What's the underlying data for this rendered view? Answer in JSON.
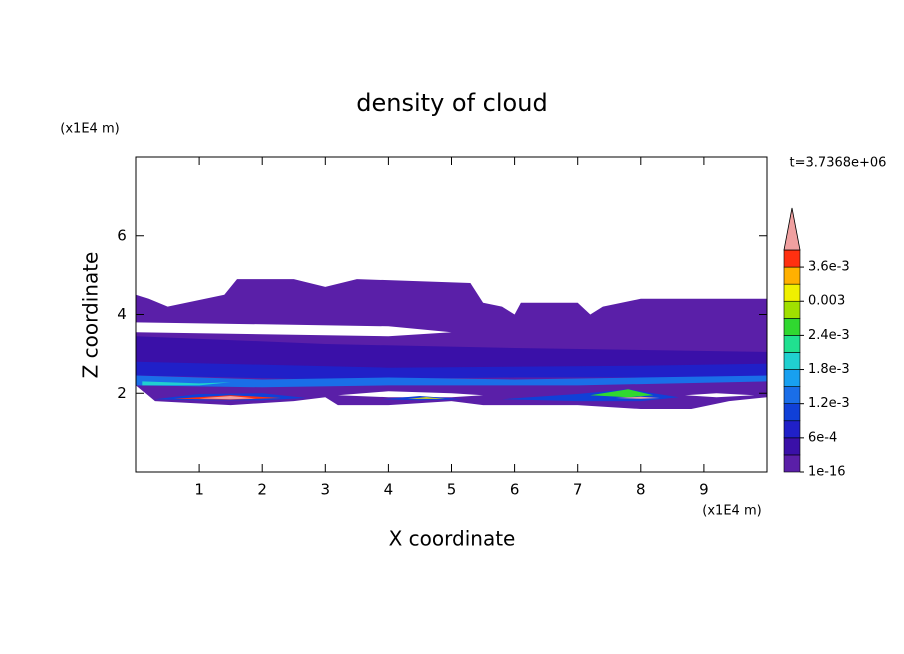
{
  "chart_data": {
    "type": "contour",
    "title": "density of cloud",
    "xlabel": "X coordinate",
    "ylabel": "Z coordinate",
    "x_unit": "(x1E4 m)",
    "y_unit": "(x1E4 m)",
    "annotation": "t=3.7368e+06",
    "xlim": [
      0,
      10
    ],
    "ylim": [
      0,
      8
    ],
    "xticks": [
      1,
      2,
      3,
      4,
      5,
      6,
      7,
      8,
      9
    ],
    "yticks": [
      2,
      4,
      6
    ],
    "grid": false,
    "colorbar": {
      "levels": [
        1e-16,
        0.0003,
        0.0006,
        0.0009,
        0.0012,
        0.0015,
        0.0018,
        0.0021,
        0.0024,
        0.0027,
        0.003,
        0.0033,
        0.0036,
        0.0039
      ],
      "colors": [
        "#5a1fa8",
        "#3a10a8",
        "#2020c8",
        "#1040d8",
        "#1a6ee8",
        "#18a0f0",
        "#20d0d0",
        "#20e090",
        "#30d830",
        "#a0e000",
        "#f0f000",
        "#ffb000",
        "#ff3010"
      ],
      "extend_color": "#f0a0a0",
      "ticks": [
        1e-16,
        {
          "value": 0.0006,
          "label": "6e-4"
        },
        {
          "value": 0.0012,
          "label": "1.2e-3"
        },
        {
          "value": 0.0018,
          "label": "1.8e-3"
        },
        {
          "value": 0.0024,
          "label": "2.4e-3"
        },
        0.003,
        {
          "value": 0.0036,
          "label": "3.6e-3"
        }
      ]
    },
    "regions": [
      {
        "level": 0,
        "rings": [
          [
            [
              0,
              4.5
            ],
            [
              0.2,
              4.4
            ],
            [
              0.5,
              4.2
            ],
            [
              1.4,
              4.5
            ],
            [
              1.6,
              4.9
            ],
            [
              2.5,
              4.9
            ],
            [
              3,
              4.7
            ],
            [
              3.5,
              4.9
            ],
            [
              5.3,
              4.8
            ],
            [
              5.5,
              4.3
            ],
            [
              5.8,
              4.2
            ],
            [
              6,
              4.0
            ],
            [
              6.1,
              4.3
            ],
            [
              7,
              4.3
            ],
            [
              7.2,
              4.0
            ],
            [
              7.4,
              4.2
            ],
            [
              8,
              4.4
            ],
            [
              9,
              4.4
            ],
            [
              10,
              4.4
            ],
            [
              10,
              1.9
            ],
            [
              9.4,
              1.8
            ],
            [
              8.8,
              1.6
            ],
            [
              8,
              1.6
            ],
            [
              7,
              1.7
            ],
            [
              6,
              1.7
            ],
            [
              5.5,
              1.7
            ],
            [
              5,
              1.8
            ],
            [
              4,
              1.7
            ],
            [
              3.2,
              1.7
            ],
            [
              3,
              1.9
            ],
            [
              2.5,
              1.8
            ],
            [
              1.5,
              1.7
            ],
            [
              0.3,
              1.8
            ],
            [
              0,
              2.2
            ]
          ],
          [
            [
              0,
              3.55
            ],
            [
              2,
              3.5
            ],
            [
              4,
              3.45
            ],
            [
              5,
              3.55
            ],
            [
              4,
              3.7
            ],
            [
              2,
              3.75
            ],
            [
              0,
              3.8
            ]
          ],
          [
            [
              0,
              3.05
            ],
            [
              1.5,
              2.95
            ],
            [
              2.5,
              3.0
            ],
            [
              1.5,
              3.15
            ],
            [
              0,
              3.2
            ]
          ],
          [
            [
              3,
              2.85
            ],
            [
              6,
              2.8
            ],
            [
              8,
              2.9
            ],
            [
              9.5,
              2.95
            ],
            [
              8,
              3.05
            ],
            [
              5,
              3.0
            ]
          ],
          [
            [
              3.2,
              1.95
            ],
            [
              4,
              2.05
            ],
            [
              5,
              2.0
            ],
            [
              5.5,
              1.95
            ],
            [
              5,
              1.9
            ],
            [
              4,
              1.9
            ]
          ],
          [
            [
              8.7,
              1.95
            ],
            [
              9.2,
              2.0
            ],
            [
              9.8,
              1.95
            ],
            [
              9.2,
              1.9
            ]
          ]
        ]
      },
      {
        "level": 1,
        "rings": [
          [
            [
              0,
              3.45
            ],
            [
              3,
              3.25
            ],
            [
              6,
              3.15
            ],
            [
              10,
              3.05
            ],
            [
              10,
              2.6
            ],
            [
              7,
              2.6
            ],
            [
              4,
              2.5
            ],
            [
              0,
              2.7
            ]
          ]
        ]
      },
      {
        "level": 2,
        "rings": [
          [
            [
              0,
              2.8
            ],
            [
              4,
              2.65
            ],
            [
              8,
              2.7
            ],
            [
              10,
              2.75
            ],
            [
              10,
              2.4
            ],
            [
              6,
              2.4
            ],
            [
              3,
              2.35
            ],
            [
              0,
              2.45
            ]
          ]
        ]
      },
      {
        "level": 4,
        "rings": [
          [
            [
              0,
              2.45
            ],
            [
              2,
              2.35
            ],
            [
              4,
              2.4
            ],
            [
              6,
              2.35
            ],
            [
              8,
              2.4
            ],
            [
              10,
              2.45
            ],
            [
              10,
              2.3
            ],
            [
              7,
              2.2
            ],
            [
              4,
              2.2
            ],
            [
              2,
              2.15
            ],
            [
              0,
              2.2
            ]
          ]
        ]
      },
      {
        "level": 6,
        "rings": [
          [
            [
              0.1,
              2.3
            ],
            [
              1,
              2.25
            ],
            [
              1.5,
              2.28
            ],
            [
              1,
              2.2
            ],
            [
              0.1,
              2.2
            ]
          ]
        ]
      },
      {
        "level": 3,
        "rings": [
          [
            [
              0.3,
              1.85
            ],
            [
              1,
              1.98
            ],
            [
              2,
              2.0
            ],
            [
              2.7,
              1.88
            ],
            [
              2,
              1.82
            ],
            [
              1,
              1.82
            ]
          ]
        ]
      },
      {
        "level": 3,
        "rings": [
          [
            [
              3.9,
              1.85
            ],
            [
              4.5,
              1.93
            ],
            [
              5.2,
              1.85
            ],
            [
              4.5,
              1.82
            ]
          ]
        ]
      },
      {
        "level": 3,
        "rings": [
          [
            [
              5.8,
              1.85
            ],
            [
              7,
              1.98
            ],
            [
              7.8,
              2.1
            ],
            [
              8.6,
              1.9
            ],
            [
              8,
              1.8
            ],
            [
              7,
              1.8
            ]
          ]
        ]
      },
      {
        "level": 8,
        "rings": [
          [
            [
              7.2,
              1.95
            ],
            [
              7.8,
              2.1
            ],
            [
              8.2,
              1.95
            ],
            [
              7.8,
              1.9
            ]
          ]
        ]
      },
      {
        "level": 12,
        "rings": [
          [
            [
              0.6,
              1.86
            ],
            [
              1.5,
              1.95
            ],
            [
              2.3,
              1.88
            ],
            [
              1.5,
              1.84
            ]
          ]
        ]
      },
      {
        "level": 10,
        "rings": [
          [
            [
              4.3,
              1.86
            ],
            [
              4.6,
              1.9
            ],
            [
              4.9,
              1.86
            ]
          ]
        ]
      },
      {
        "level": 13,
        "rings": [
          [
            [
              1,
              1.87
            ],
            [
              1.5,
              1.93
            ],
            [
              1.9,
              1.87
            ],
            [
              1.5,
              1.85
            ]
          ]
        ]
      },
      {
        "level": 13,
        "rings": [
          [
            [
              7.6,
              1.88
            ],
            [
              8,
              1.91
            ],
            [
              8.3,
              1.88
            ],
            [
              8,
              1.86
            ]
          ]
        ]
      }
    ]
  }
}
